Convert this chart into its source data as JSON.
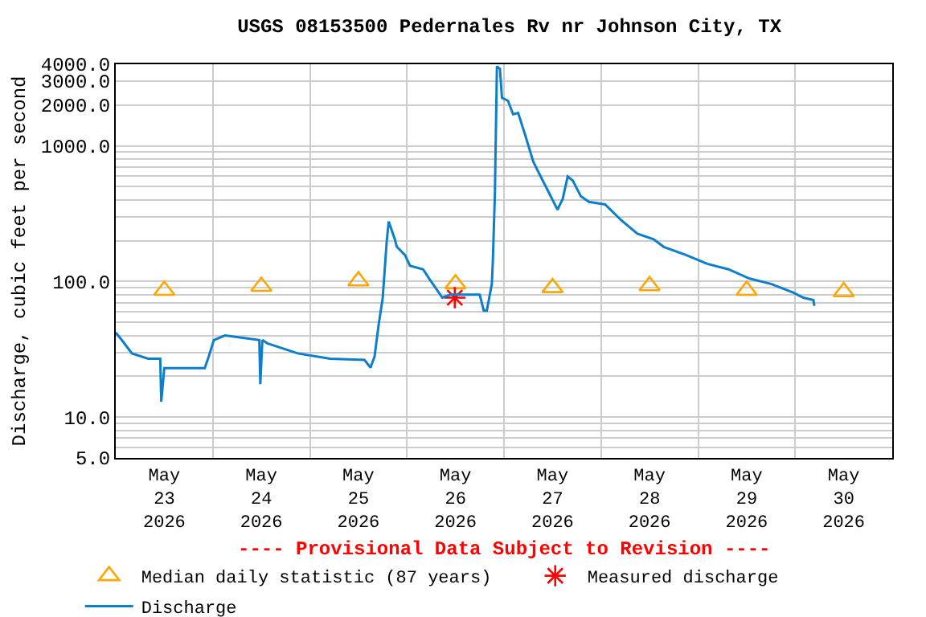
{
  "chart_data": {
    "type": "line",
    "title": "USGS 08153500 Pedernales Rv nr Johnson City, TX",
    "ylabel": "Discharge, cubic feet per second",
    "annotations": [
      "---- Provisional Data Subject to Revision ----"
    ],
    "log": "y",
    "grid": true,
    "legend": "bottom",
    "xlim": [
      "2026-05-23T00:00",
      "2026-05-31T00:00"
    ],
    "xticks": [
      {
        "value": "2026-05-23T12:00",
        "label": "May\n23\n2026"
      },
      {
        "value": "2026-05-24T12:00",
        "label": "May\n24\n2026"
      },
      {
        "value": "2026-05-25T12:00",
        "label": "May\n25\n2026"
      },
      {
        "value": "2026-05-26T12:00",
        "label": "May\n26\n2026"
      },
      {
        "value": "2026-05-27T12:00",
        "label": "May\n27\n2026"
      },
      {
        "value": "2026-05-28T12:00",
        "label": "May\n28\n2026"
      },
      {
        "value": "2026-05-29T12:00",
        "label": "May\n29\n2026"
      },
      {
        "value": "2026-05-30T12:00",
        "label": "May\n30\n2026"
      },
      {
        "value": "2026-05-24T00:00",
        "label": null
      },
      {
        "value": "2026-05-25T00:00",
        "label": null
      },
      {
        "value": "2026-05-26T00:00",
        "label": null
      },
      {
        "value": "2026-05-27T00:00",
        "label": null
      },
      {
        "value": "2026-05-28T00:00",
        "label": null
      },
      {
        "value": "2026-05-29T00:00",
        "label": null
      },
      {
        "value": "2026-05-30T00:00",
        "label": null
      }
    ],
    "ylim": [
      5,
      4000
    ],
    "yticks": [
      {
        "value": 5,
        "label": "5.0"
      },
      {
        "value": 10,
        "label": "10.0"
      },
      {
        "value": 100,
        "label": "100.0"
      },
      {
        "value": 1000,
        "label": "1000.0"
      },
      {
        "value": 2000,
        "label": "2000.0"
      },
      {
        "value": 3000,
        "label": "3000.0"
      },
      {
        "value": 4000,
        "label": "4000.0"
      },
      {
        "value": 6,
        "label": null
      },
      {
        "value": 7,
        "label": null
      },
      {
        "value": 8,
        "label": null
      },
      {
        "value": 9,
        "label": null
      },
      {
        "value": 20,
        "label": null
      },
      {
        "value": 30,
        "label": null
      },
      {
        "value": 40,
        "label": null
      },
      {
        "value": 50,
        "label": null
      },
      {
        "value": 60,
        "label": null
      },
      {
        "value": 70,
        "label": null
      },
      {
        "value": 80,
        "label": null
      },
      {
        "value": 90,
        "label": null
      },
      {
        "value": 200,
        "label": null
      },
      {
        "value": 300,
        "label": null
      },
      {
        "value": 400,
        "label": null
      },
      {
        "value": 500,
        "label": null
      },
      {
        "value": 600,
        "label": null
      },
      {
        "value": 700,
        "label": null
      },
      {
        "value": 800,
        "label": null
      },
      {
        "value": 900,
        "label": null
      }
    ],
    "series": [
      {
        "name": "Median daily statistic (87 years)",
        "type": "scatter",
        "marker": "triangle",
        "color": "#ffa500",
        "x": [
          "2026-05-23T12:00",
          "2026-05-24T12:00",
          "2026-05-25T12:00",
          "2026-05-26T12:00",
          "2026-05-27T12:00",
          "2026-05-28T12:00",
          "2026-05-29T12:00",
          "2026-05-30T12:00"
        ],
        "values": [
          86,
          92,
          101,
          96,
          90,
          93,
          86,
          84
        ]
      },
      {
        "name": "Measured discharge",
        "type": "scatter",
        "marker": "cross",
        "color": "#ff0000",
        "x": [
          "2026-05-26T11:50"
        ],
        "values": [
          76
        ]
      },
      {
        "name": "Discharge",
        "marker": "none",
        "color": "#0b7fcc",
        "x": [
          "2026-05-23T00:00",
          "2026-05-23T01:30",
          "2026-05-23T04:00",
          "2026-05-23T08:00",
          "2026-05-23T11:00",
          "2026-05-23T11:15",
          "2026-05-23T12:00",
          "2026-05-23T22:00",
          "2026-05-23T23:00",
          "2026-05-24T00:15",
          "2026-05-24T03:00",
          "2026-05-24T11:30",
          "2026-05-24T11:45",
          "2026-05-24T12:15",
          "2026-05-24T13:30",
          "2026-05-24T21:00",
          "2026-05-25T05:00",
          "2026-05-25T13:30",
          "2026-05-25T15:00",
          "2026-05-25T16:00",
          "2026-05-25T17:00",
          "2026-05-25T18:00",
          "2026-05-25T19:00",
          "2026-05-25T19:30",
          "2026-05-25T21:00",
          "2026-05-25T21:30",
          "2026-05-25T23:30",
          "2026-05-26T00:45",
          "2026-05-26T04:00",
          "2026-05-26T05:30",
          "2026-05-26T08:45",
          "2026-05-26T10:45",
          "2026-05-26T18:00",
          "2026-05-26T19:00",
          "2026-05-26T19:45",
          "2026-05-26T21:00",
          "2026-05-26T21:15",
          "2026-05-26T21:45",
          "2026-05-26T22:15",
          "2026-05-26T23:00",
          "2026-05-26T23:30",
          "2026-05-27T01:00",
          "2026-05-27T02:15",
          "2026-05-27T03:30",
          "2026-05-27T05:15",
          "2026-05-27T07:15",
          "2026-05-27T09:15",
          "2026-05-27T11:15",
          "2026-05-27T13:15",
          "2026-05-27T13:45",
          "2026-05-27T14:30",
          "2026-05-27T15:45",
          "2026-05-27T17:00",
          "2026-05-27T19:00",
          "2026-05-27T21:00",
          "2026-05-28T01:00",
          "2026-05-28T05:00",
          "2026-05-28T09:00",
          "2026-05-28T13:00",
          "2026-05-28T15:30",
          "2026-05-28T21:00",
          "2026-05-29T02:15",
          "2026-05-29T07:30",
          "2026-05-29T12:45",
          "2026-05-29T18:00",
          "2026-05-29T23:30",
          "2026-05-30T02:00",
          "2026-05-30T04:30",
          "2026-05-30T04:45"
        ],
        "values": [
          42,
          37,
          29.5,
          27,
          27,
          13,
          23,
          23,
          28,
          37,
          40,
          37,
          17.5,
          37,
          35,
          29.5,
          27,
          26.4,
          23.2,
          28,
          48,
          75,
          197,
          277,
          205,
          180,
          157,
          131,
          123,
          105,
          76,
          80,
          80,
          61,
          61,
          96,
          143,
          443,
          3860,
          3700,
          2260,
          2150,
          1710,
          1750,
          1200,
          764,
          580,
          443,
          338,
          365,
          405,
          595,
          555,
          425,
          387,
          370,
          283,
          225,
          205,
          180,
          157,
          135,
          123,
          105,
          96,
          83,
          76,
          73,
          66
        ]
      }
    ]
  }
}
